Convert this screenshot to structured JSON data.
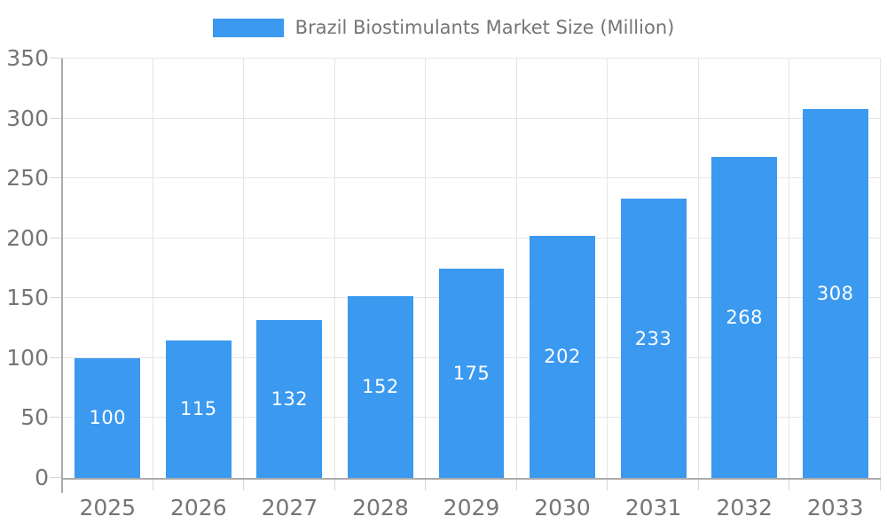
{
  "legend": {
    "label": "Brazil Biostimulants Market Size (Million)",
    "swatch_color": "#3B99F0"
  },
  "chart_data": {
    "type": "bar",
    "title": "Brazil Biostimulants Market Size (Million)",
    "series_name": "Brazil Biostimulants Market Size (Million)",
    "categories": [
      "2025",
      "2026",
      "2027",
      "2028",
      "2029",
      "2030",
      "2031",
      "2032",
      "2033"
    ],
    "values": [
      100,
      115,
      132,
      152,
      175,
      202,
      233,
      268,
      308
    ],
    "value_labels": [
      "100",
      "115",
      "132",
      "152",
      "175",
      "202",
      "233",
      "268",
      "308"
    ],
    "xlabel": "",
    "ylabel": "",
    "ylim": [
      0,
      350
    ],
    "ytick_step": 50,
    "yticks": [
      0,
      50,
      100,
      150,
      200,
      250,
      300,
      350
    ],
    "grid": true,
    "grid_vertical": true,
    "legend_position": "top-center",
    "value_label_position": "center-of-bar",
    "colors": {
      "bar": "#3B99F0",
      "value_label": "#FFFFFF",
      "axis_text": "#757575",
      "gridline": "#E5E5E5",
      "axis_line": "#ABABAB",
      "tick": "#D6D6D6",
      "background": "#FFFFFF"
    }
  }
}
